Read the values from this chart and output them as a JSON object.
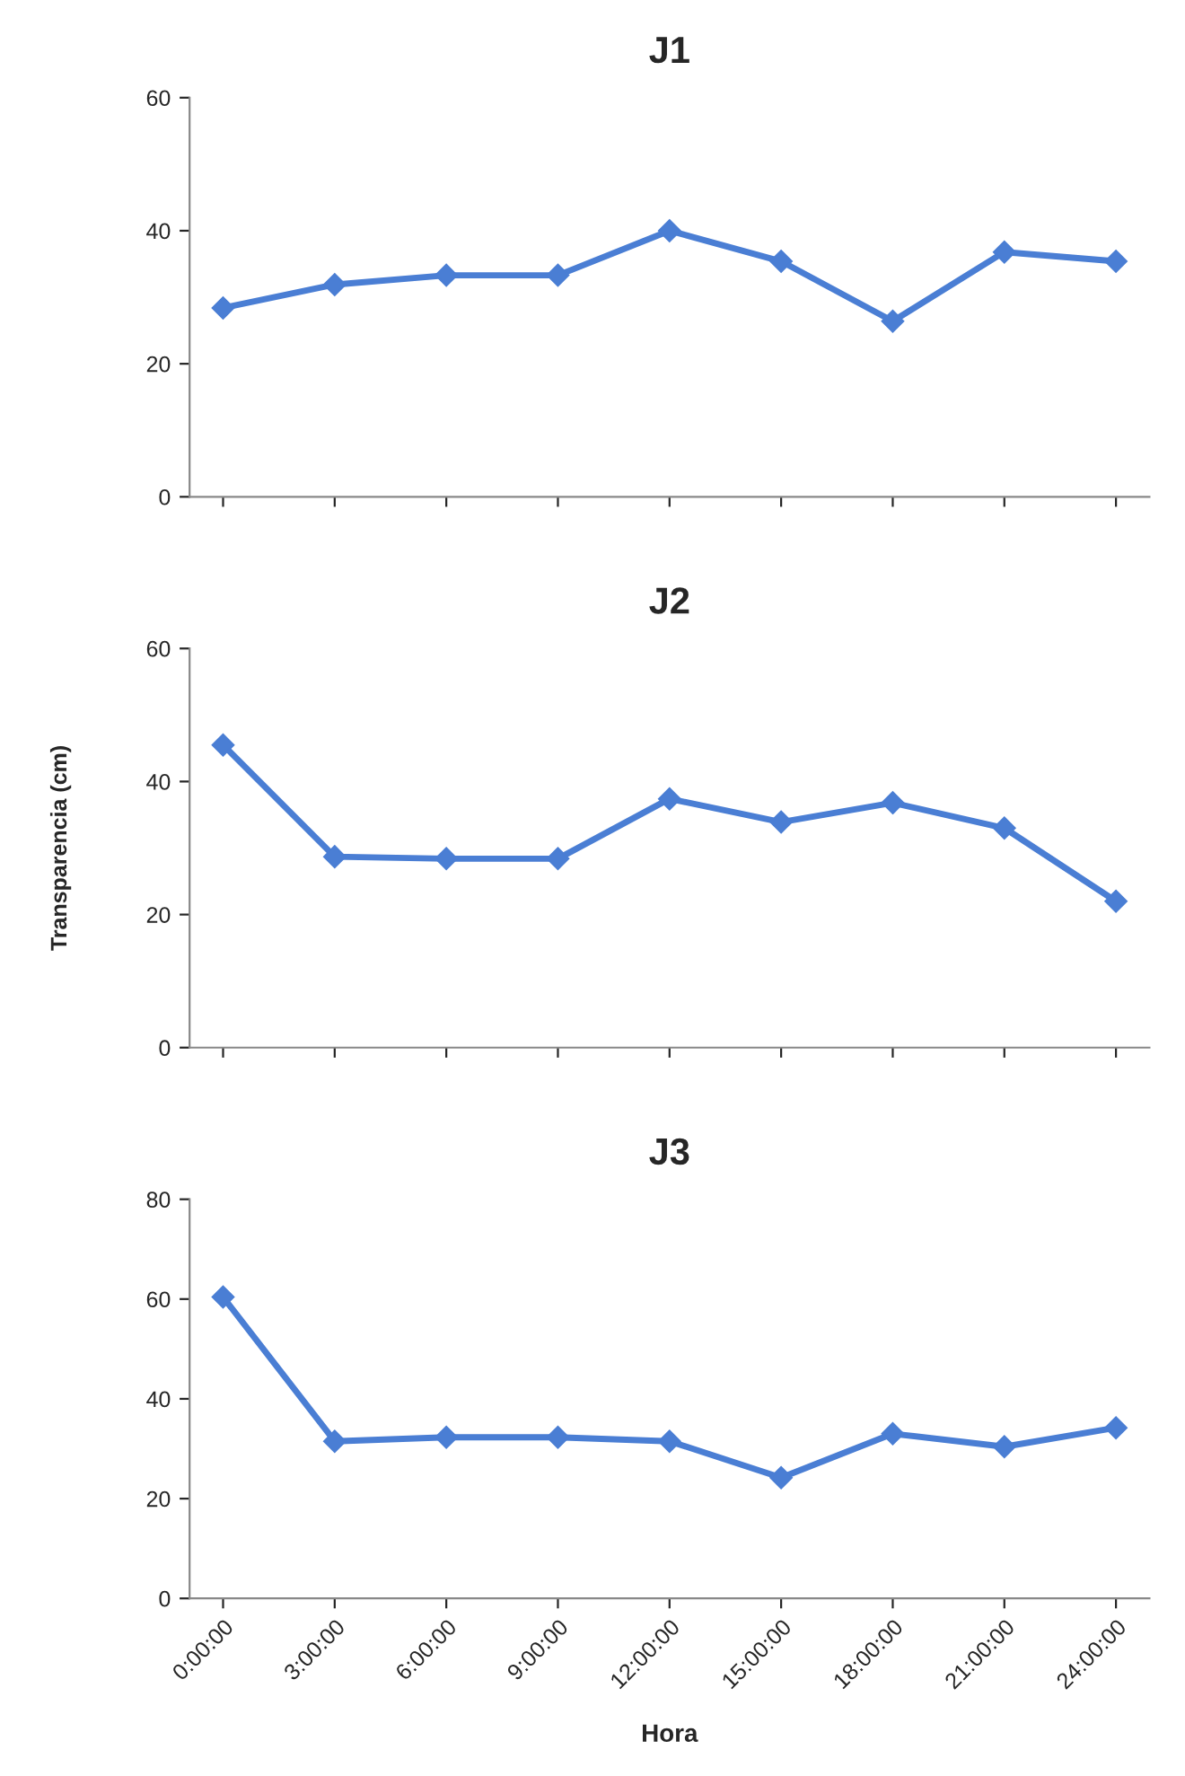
{
  "chart_data": [
    {
      "type": "line",
      "title": "J1",
      "categories": [
        null,
        null,
        null,
        null,
        null,
        null,
        null,
        null,
        null
      ],
      "series": [
        {
          "color": "#4a7ed4",
          "values": [
            28.4,
            31.9,
            33.3,
            33.3,
            40,
            35.4,
            26.4,
            36.8,
            35.4
          ]
        }
      ],
      "ylim": [
        0,
        60
      ],
      "yticks": [
        0,
        20,
        40,
        60
      ],
      "marker": "diamond",
      "line_style": "solid",
      "grid": false,
      "legend": false,
      "tick_labels": "y"
    },
    {
      "type": "line",
      "title": "J2",
      "ylabel": "Transparencia (cm)",
      "categories": [
        null,
        null,
        null,
        null,
        null,
        null,
        null,
        null,
        null
      ],
      "series": [
        {
          "color": "#4a7ed4",
          "values": [
            45.5,
            28.7,
            28.4,
            28.4,
            37.4,
            33.9,
            36.8,
            33,
            22
          ]
        }
      ],
      "ylim": [
        0,
        60
      ],
      "yticks": [
        0,
        20,
        40,
        60
      ],
      "marker": "diamond",
      "line_style": "solid",
      "grid": false,
      "legend": false,
      "tick_labels": "y"
    },
    {
      "type": "line",
      "title": "J3",
      "xlabel": "Hora",
      "categories": [
        "0:00:00",
        "3:00:00",
        "6:00:00",
        "9:00:00",
        "12:00:00",
        "15:00:00",
        "18:00:00",
        "21:00:00",
        "24:00:00"
      ],
      "series": [
        {
          "color": "#4a7ed4",
          "values": [
            60.4,
            31.5,
            32.3,
            32.3,
            31.5,
            24.2,
            33,
            30.4,
            34.2
          ]
        }
      ],
      "ylim": [
        0,
        80
      ],
      "yticks": [
        0,
        20,
        40,
        60,
        80
      ],
      "marker": "diamond",
      "line_style": "solid",
      "grid": false,
      "legend": false
    }
  ]
}
